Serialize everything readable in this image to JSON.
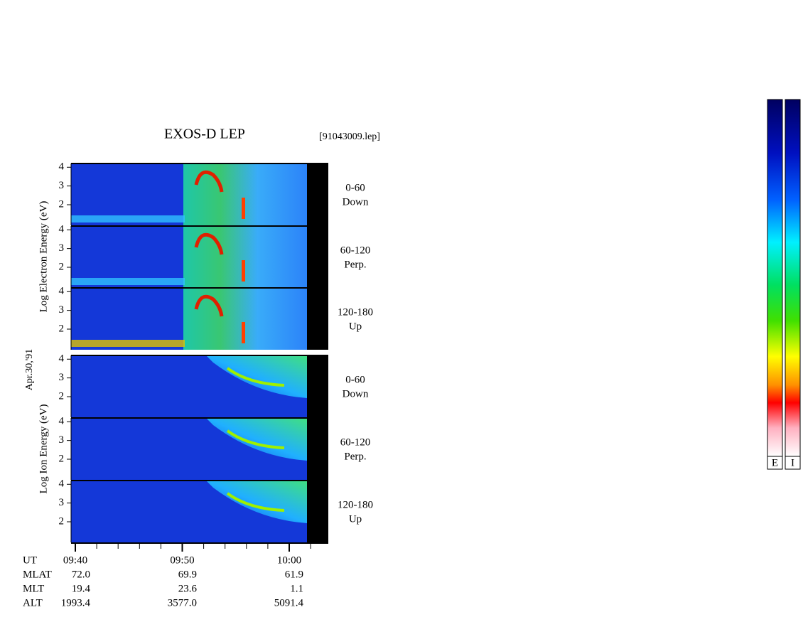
{
  "header": {
    "title": "EXOS-D LEP",
    "file": "[91043009.lep]"
  },
  "date": "Apr.30,'91",
  "groups": [
    {
      "label": "Log  Electron  Energy (eV)",
      "panels": [
        {
          "range": "0-60",
          "direction": "Down"
        },
        {
          "range": "60-120",
          "direction": "Perp."
        },
        {
          "range": "120-180",
          "direction": "Up"
        }
      ]
    },
    {
      "label": "Log  Ion  Energy (eV)",
      "panels": [
        {
          "range": "0-60",
          "direction": "Down"
        },
        {
          "range": "60-120",
          "direction": "Perp."
        },
        {
          "range": "120-180",
          "direction": "Up"
        }
      ]
    }
  ],
  "ylim": [
    0.9,
    4.2
  ],
  "yticks": [
    2,
    3,
    4
  ],
  "xticks": [
    "09:40",
    "09:50",
    "10:00"
  ],
  "table": {
    "rows": [
      [
        "UT"
      ],
      [
        "MLAT",
        "72.0",
        "69.9",
        "61.9"
      ],
      [
        "MLT",
        "19.4",
        "23.6",
        "1.1"
      ],
      [
        "ALT",
        "1993.4",
        "3577.0",
        "5091.4"
      ]
    ]
  },
  "colorbars": [
    "E",
    "I"
  ]
}
